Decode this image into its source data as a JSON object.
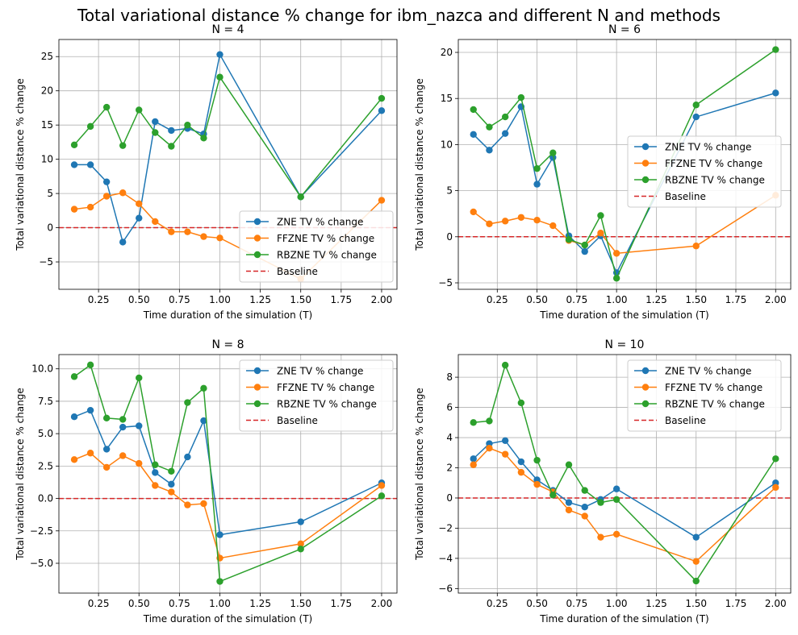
{
  "figure": {
    "title": "Total variational distance % change for ibm_nazca and different N and methods"
  },
  "colors": {
    "ZNE": "#1f77b4",
    "FFZNE": "#ff7f0e",
    "RBZNE": "#2ca02c",
    "Baseline": "#d62728",
    "grid": "#b0b0b0"
  },
  "chart_data": [
    {
      "type": "line",
      "title": "N = 4",
      "xlabel": "Time duration of the simulation (T)",
      "ylabel": "Total variational distance % change",
      "xlim": [
        0.005,
        2.095
      ],
      "ylim": [
        -9,
        27.5
      ],
      "xticks": [
        "0.25",
        "0.50",
        "0.75",
        "1.00",
        "1.25",
        "1.50",
        "1.75",
        "2.00"
      ],
      "yticks": [
        "−5",
        "0",
        "5",
        "10",
        "15",
        "20",
        "25"
      ],
      "x": [
        0.1,
        0.2,
        0.3,
        0.4,
        0.5,
        0.6,
        0.7,
        0.8,
        0.9,
        1.0,
        1.5,
        2.0
      ],
      "grid": true,
      "legend_position": "lower-right",
      "series": [
        {
          "name": "ZNE TV % change",
          "values": [
            9.2,
            9.2,
            6.7,
            -2.1,
            1.4,
            15.5,
            14.2,
            14.5,
            13.7,
            25.3,
            4.5,
            17.1
          ]
        },
        {
          "name": "FFZNE TV % change",
          "values": [
            2.7,
            3.0,
            4.6,
            5.1,
            3.5,
            0.9,
            -0.6,
            -0.6,
            -1.3,
            -1.5,
            -7.5,
            4.0
          ]
        },
        {
          "name": "RBZNE TV % change",
          "values": [
            12.1,
            14.8,
            17.6,
            12.0,
            17.2,
            13.9,
            11.9,
            15.0,
            13.1,
            22.0,
            4.5,
            18.9
          ]
        }
      ],
      "baseline": {
        "name": "Baseline",
        "value": 0
      }
    },
    {
      "type": "line",
      "title": "N = 6",
      "xlabel": "Time duration of the simulation (T)",
      "ylabel": "Total variational distance % change",
      "xlim": [
        0.005,
        2.095
      ],
      "ylim": [
        -5.7,
        21.4
      ],
      "xticks": [
        "0.25",
        "0.50",
        "0.75",
        "1.00",
        "1.25",
        "1.50",
        "1.75",
        "2.00"
      ],
      "yticks": [
        "−5",
        "0",
        "5",
        "10",
        "15",
        "20"
      ],
      "x": [
        0.1,
        0.2,
        0.3,
        0.4,
        0.5,
        0.6,
        0.7,
        0.8,
        0.9,
        1.0,
        1.5,
        2.0
      ],
      "grid": true,
      "legend_position": "center-right",
      "series": [
        {
          "name": "ZNE TV % change",
          "values": [
            11.1,
            9.4,
            11.2,
            14.1,
            5.7,
            8.6,
            0.1,
            -1.6,
            0.1,
            -3.9,
            13.0,
            15.6
          ]
        },
        {
          "name": "FFZNE TV % change",
          "values": [
            2.7,
            1.4,
            1.7,
            2.1,
            1.8,
            1.2,
            -0.4,
            -0.9,
            0.4,
            -1.8,
            -1.0,
            4.5
          ]
        },
        {
          "name": "RBZNE TV % change",
          "values": [
            13.8,
            11.9,
            13.0,
            15.1,
            7.4,
            9.1,
            -0.3,
            -0.9,
            2.3,
            -4.5,
            14.3,
            20.3
          ]
        }
      ],
      "baseline": {
        "name": "Baseline",
        "value": 0
      }
    },
    {
      "type": "line",
      "title": "N = 8",
      "xlabel": "Time duration of the simulation (T)",
      "ylabel": "Total variational distance % change",
      "xlim": [
        0.005,
        2.095
      ],
      "ylim": [
        -7.3,
        11.1
      ],
      "xticks": [
        "0.25",
        "0.50",
        "0.75",
        "1.00",
        "1.25",
        "1.50",
        "1.75",
        "2.00"
      ],
      "yticks": [
        "−5.0",
        "−2.5",
        "0.0",
        "2.5",
        "5.0",
        "7.5",
        "10.0"
      ],
      "x": [
        0.1,
        0.2,
        0.3,
        0.4,
        0.5,
        0.6,
        0.7,
        0.8,
        0.9,
        1.0,
        1.5,
        2.0
      ],
      "grid": true,
      "legend_position": "upper-right",
      "series": [
        {
          "name": "ZNE TV % change",
          "values": [
            6.3,
            6.8,
            3.8,
            5.5,
            5.6,
            2.0,
            1.1,
            3.2,
            6.0,
            -2.8,
            -1.8,
            1.2
          ]
        },
        {
          "name": "FFZNE TV % change",
          "values": [
            3.0,
            3.5,
            2.4,
            3.3,
            2.7,
            1.0,
            0.5,
            -0.5,
            -0.4,
            -4.6,
            -3.5,
            1.0
          ]
        },
        {
          "name": "RBZNE TV % change",
          "values": [
            9.4,
            10.3,
            6.2,
            6.1,
            9.3,
            2.6,
            2.1,
            7.4,
            8.5,
            -6.4,
            -3.9,
            0.2
          ]
        }
      ],
      "baseline": {
        "name": "Baseline",
        "value": 0
      }
    },
    {
      "type": "line",
      "title": "N = 10",
      "xlabel": "Time duration of the simulation (T)",
      "ylabel": "Total variational distance % change",
      "xlim": [
        0.005,
        2.095
      ],
      "ylim": [
        -6.3,
        9.5
      ],
      "xticks": [
        "0.25",
        "0.50",
        "0.75",
        "1.00",
        "1.25",
        "1.50",
        "1.75",
        "2.00"
      ],
      "yticks": [
        "−6",
        "−4",
        "−2",
        "0",
        "2",
        "4",
        "6",
        "8"
      ],
      "x": [
        0.1,
        0.2,
        0.3,
        0.4,
        0.5,
        0.6,
        0.7,
        0.8,
        0.9,
        1.0,
        1.5,
        2.0
      ],
      "grid": true,
      "legend_position": "upper-right",
      "series": [
        {
          "name": "ZNE TV % change",
          "values": [
            2.6,
            3.6,
            3.8,
            2.4,
            1.2,
            0.5,
            -0.3,
            -0.6,
            -0.1,
            0.6,
            -2.6,
            1.0
          ]
        },
        {
          "name": "FFZNE TV % change",
          "values": [
            2.2,
            3.3,
            2.9,
            1.7,
            0.9,
            0.4,
            -0.8,
            -1.2,
            -2.6,
            -2.4,
            -4.2,
            0.7
          ]
        },
        {
          "name": "RBZNE TV % change",
          "values": [
            5.0,
            5.1,
            8.8,
            6.3,
            2.5,
            0.2,
            2.2,
            0.5,
            -0.3,
            -0.1,
            -5.5,
            2.6
          ]
        }
      ],
      "baseline": {
        "name": "Baseline",
        "value": 0
      }
    }
  ]
}
